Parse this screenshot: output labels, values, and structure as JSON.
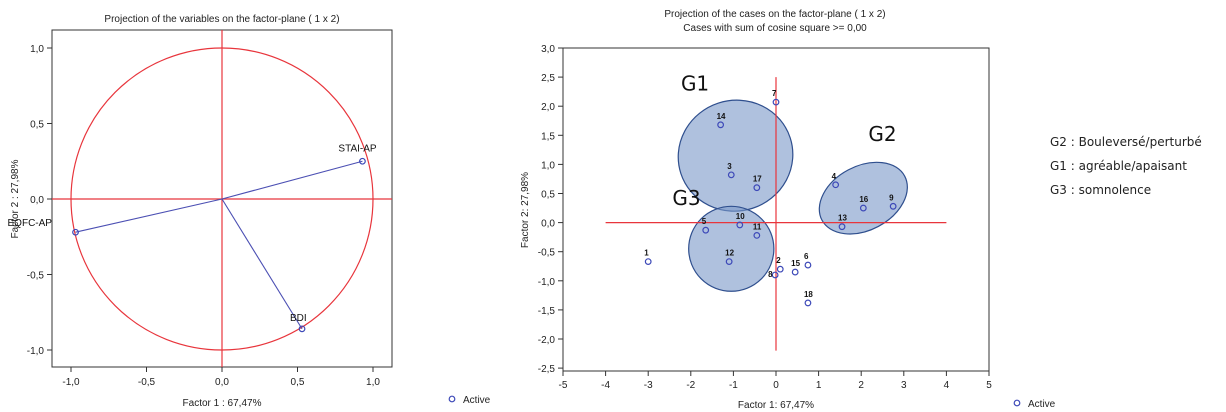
{
  "chart_data": [
    {
      "type": "scatter",
      "title": "Projection of the variables on the factor-plane (  1 x   2)",
      "xlabel": "Factor 1 : 67,47%",
      "ylabel": "Factor 2 : 27,98%",
      "xlim": [
        -1.1,
        1.1
      ],
      "ylim": [
        -1.1,
        1.1
      ],
      "xticks": [
        "-1,0",
        "-0,5",
        "0,0",
        "0,5",
        "1,0"
      ],
      "yticks": [
        "1,0",
        "0,5",
        "0,0",
        "-0,5",
        "-1,0"
      ],
      "unit_circle": true,
      "points": [
        {
          "label": "STAI-AP",
          "x": 0.93,
          "y": 0.25
        },
        {
          "label": "EQFC-AP",
          "x": -0.97,
          "y": -0.22
        },
        {
          "label": "BDI",
          "x": 0.53,
          "y": -0.86
        }
      ],
      "legend": "Active",
      "colors": {
        "axis": "#e8353c",
        "vector": "#4b4fb3",
        "point": "#3d49b8"
      }
    },
    {
      "type": "scatter",
      "title": "Projection of the cases on the factor-plane (  1 x   2)",
      "subtitle": "Cases with sum of cosine square >=  0,00",
      "xlabel": "Factor 1: 67,47%",
      "ylabel": "Factor 2: 27,98%",
      "xlim": [
        -5,
        5
      ],
      "ylim": [
        -2.5,
        3.0
      ],
      "xticks": [
        "-5",
        "-4",
        "-3",
        "-2",
        "-1",
        "0",
        "1",
        "2",
        "3",
        "4",
        "5"
      ],
      "yticks": [
        "3,0",
        "2,5",
        "2,0",
        "1,5",
        "1,0",
        "0,5",
        "0,0",
        "-0,5",
        "-1,0",
        "-1,5",
        "-2,0",
        "-2,5"
      ],
      "points": [
        {
          "label": "1",
          "x": -3.0,
          "y": -0.67
        },
        {
          "label": "2",
          "x": 0.1,
          "y": -0.8
        },
        {
          "label": "3",
          "x": -1.05,
          "y": 0.82
        },
        {
          "label": "4",
          "x": 1.4,
          "y": 0.65
        },
        {
          "label": "5",
          "x": -1.65,
          "y": -0.13
        },
        {
          "label": "6",
          "x": 0.75,
          "y": -0.73
        },
        {
          "label": "7",
          "x": 0.0,
          "y": 2.07
        },
        {
          "label": "8",
          "x": -0.02,
          "y": -0.9
        },
        {
          "label": "9",
          "x": 2.75,
          "y": 0.28
        },
        {
          "label": "10",
          "x": -0.85,
          "y": -0.04
        },
        {
          "label": "11",
          "x": -0.45,
          "y": -0.22
        },
        {
          "label": "12",
          "x": -1.1,
          "y": -0.67
        },
        {
          "label": "13",
          "x": 1.55,
          "y": -0.07
        },
        {
          "label": "14",
          "x": -1.3,
          "y": 1.68
        },
        {
          "label": "15",
          "x": 0.45,
          "y": -0.85
        },
        {
          "label": "16",
          "x": 2.05,
          "y": 0.25
        },
        {
          "label": "17",
          "x": -0.45,
          "y": 0.6
        },
        {
          "label": "18",
          "x": 0.75,
          "y": -1.38
        }
      ],
      "groups": [
        {
          "label": "G1",
          "cx": -0.95,
          "cy": 1.15,
          "rx": 1.35,
          "ry": 0.95,
          "angle": -18
        },
        {
          "label": "G2",
          "cx": 2.05,
          "cy": 0.42,
          "rx": 1.1,
          "ry": 0.55,
          "angle": -28
        },
        {
          "label": "G3",
          "cx": -1.05,
          "cy": -0.45,
          "rx": 1.0,
          "ry": 0.73,
          "angle": 0
        }
      ],
      "legend": "Active",
      "colors": {
        "axis": "#e8353c",
        "point": "#3d49b8",
        "group_fill": "#7a98c8",
        "group_stroke": "#2f4f8e"
      }
    }
  ],
  "side_legend": [
    "G2 : Bouleversé/perturbé",
    "G1 : agréable/apaisant",
    "G3 : somnolence"
  ]
}
